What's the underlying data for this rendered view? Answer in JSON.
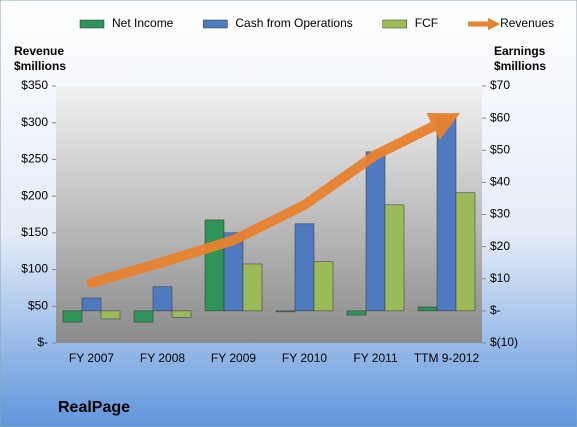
{
  "chart_data": {
    "type": "bar",
    "title": "RealPage",
    "ylabel": [
      "Revenue",
      "$millions"
    ],
    "y2label": [
      "Earnings",
      "$millions"
    ],
    "categories": [
      "FY 2007",
      "FY 2008",
      "FY 2009",
      "FY 2010",
      "FY 2011",
      "TTM 9-2012"
    ],
    "series": [
      {
        "name": "Net Income",
        "color": "#2e9356",
        "axis": "y2",
        "type": "bar",
        "values": [
          -3.5,
          -3.5,
          28.3,
          -0.3,
          -1.3,
          1.2
        ]
      },
      {
        "name": "Cash from Operations",
        "color": "#4f7ac0",
        "axis": "y2",
        "type": "bar",
        "values": [
          4,
          7.5,
          24.3,
          27.1,
          49.5,
          60.7
        ]
      },
      {
        "name": "FCF",
        "color": "#9bbb59",
        "axis": "y2",
        "type": "bar",
        "values": [
          -2.5,
          -2,
          14.6,
          15.3,
          33,
          36.8
        ]
      },
      {
        "name": "Revenues",
        "color": "#e8822f",
        "axis": "y",
        "type": "line",
        "values": [
          82,
          110,
          140,
          188,
          256,
          304
        ]
      }
    ],
    "ylim": [
      0,
      350
    ],
    "yticks": [
      {
        "value": 0,
        "label": "$-"
      },
      {
        "value": 50,
        "label": "$50"
      },
      {
        "value": 100,
        "label": "$100"
      },
      {
        "value": 150,
        "label": "$150"
      },
      {
        "value": 200,
        "label": "$200"
      },
      {
        "value": 250,
        "label": "$250"
      },
      {
        "value": 300,
        "label": "$300"
      },
      {
        "value": 350,
        "label": "$350"
      }
    ],
    "y2lim": [
      -10,
      70
    ],
    "y2ticks": [
      {
        "value": -10,
        "label": "$(10)"
      },
      {
        "value": 0,
        "label": "$-"
      },
      {
        "value": 10,
        "label": "$10"
      },
      {
        "value": 20,
        "label": "$20"
      },
      {
        "value": 30,
        "label": "$30"
      },
      {
        "value": 40,
        "label": "$40"
      },
      {
        "value": 50,
        "label": "$50"
      },
      {
        "value": 60,
        "label": "$60"
      },
      {
        "value": 70,
        "label": "$70"
      }
    ],
    "legend": "top"
  }
}
